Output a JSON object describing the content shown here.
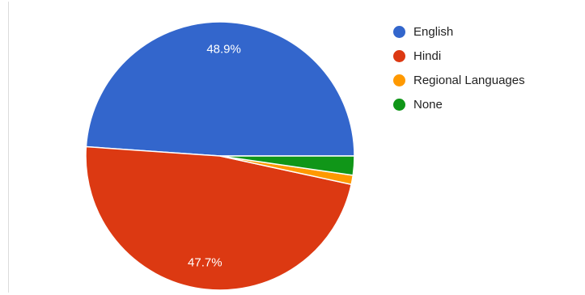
{
  "chart_data": {
    "type": "pie",
    "categories": [
      "English",
      "Hindi",
      "Regional Languages",
      "None"
    ],
    "values": [
      48.9,
      47.7,
      1.1,
      2.3
    ],
    "colors": [
      "#3366cc",
      "#dc3912",
      "#ff9900",
      "#109618"
    ],
    "data_labels": [
      "48.9%",
      "47.7%",
      "",
      ""
    ],
    "legend": "right",
    "start_direction": "right, counter-clockwise"
  }
}
